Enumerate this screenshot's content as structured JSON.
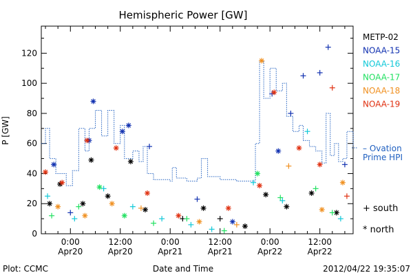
{
  "chart_data": {
    "type": "scatter",
    "title": "Hemispheric Power [GW]",
    "ylabel": "P [GW]",
    "xlabel": "Date and Time",
    "ylim": [
      0,
      138
    ],
    "yticks": [
      0,
      20,
      40,
      60,
      80,
      100,
      120
    ],
    "xlim": [
      "2012-04-19 17:00",
      "2012-04-22 20:00"
    ],
    "xticks": [
      {
        "t": "2012-04-20 00:00",
        "line1": "0:00",
        "line2": "Apr20"
      },
      {
        "t": "2012-04-20 12:00",
        "line1": "12:00",
        "line2": "Apr20"
      },
      {
        "t": "2012-04-21 00:00",
        "line1": "0:00",
        "line2": "Apr21"
      },
      {
        "t": "2012-04-21 12:00",
        "line1": "12:00",
        "line2": "Apr21"
      },
      {
        "t": "2012-04-22 00:00",
        "line1": "0:00",
        "line2": "Apr22"
      },
      {
        "t": "2012-04-22 12:00",
        "line1": "12:00",
        "line2": "Apr22"
      }
    ],
    "series": [
      {
        "name": "METP-02",
        "color": "#000000",
        "points": [
          {
            "t": "2012-04-19 19:00",
            "y": 20,
            "m": "north"
          },
          {
            "t": "2012-04-19 21:30",
            "y": 33,
            "m": "north"
          },
          {
            "t": "2012-04-20 03:00",
            "y": 20,
            "m": "north"
          },
          {
            "t": "2012-04-20 05:00",
            "y": 49,
            "m": "north"
          },
          {
            "t": "2012-04-20 09:00",
            "y": 25,
            "m": "north"
          },
          {
            "t": "2012-04-20 14:30",
            "y": 48,
            "m": "north"
          },
          {
            "t": "2012-04-20 18:00",
            "y": 16,
            "m": "north"
          },
          {
            "t": "2012-04-21 03:00",
            "y": 10,
            "m": "south"
          },
          {
            "t": "2012-04-21 08:00",
            "y": 17,
            "m": "north"
          },
          {
            "t": "2012-04-21 12:00",
            "y": 10,
            "m": "south"
          },
          {
            "t": "2012-04-21 18:00",
            "y": 5,
            "m": "north"
          },
          {
            "t": "2012-04-21 23:00",
            "y": 26,
            "m": "north"
          },
          {
            "t": "2012-04-22 04:00",
            "y": 18,
            "m": "north"
          },
          {
            "t": "2012-04-22 10:00",
            "y": 27,
            "m": "north"
          },
          {
            "t": "2012-04-22 16:00",
            "y": 14,
            "m": "north"
          }
        ]
      },
      {
        "name": "NOAA-15",
        "color": "#1030b0",
        "points": [
          {
            "t": "2012-04-19 20:00",
            "y": 46,
            "m": "north"
          },
          {
            "t": "2012-04-20 00:00",
            "y": 14,
            "m": "south"
          },
          {
            "t": "2012-04-20 04:30",
            "y": 62,
            "m": "north"
          },
          {
            "t": "2012-04-20 05:30",
            "y": 88,
            "m": "north"
          },
          {
            "t": "2012-04-20 12:30",
            "y": 68,
            "m": "north"
          },
          {
            "t": "2012-04-20 14:00",
            "y": 72,
            "m": "north"
          },
          {
            "t": "2012-04-20 19:00",
            "y": 58,
            "m": "south"
          },
          {
            "t": "2012-04-21 06:30",
            "y": 23,
            "m": "south"
          },
          {
            "t": "2012-04-21 15:00",
            "y": 8,
            "m": "north"
          },
          {
            "t": "2012-04-22 00:30",
            "y": 93,
            "m": "south"
          },
          {
            "t": "2012-04-22 02:00",
            "y": 55,
            "m": "north"
          },
          {
            "t": "2012-04-22 05:00",
            "y": 80,
            "m": "south"
          },
          {
            "t": "2012-04-22 08:00",
            "y": 105,
            "m": "south"
          },
          {
            "t": "2012-04-22 12:00",
            "y": 107,
            "m": "south"
          },
          {
            "t": "2012-04-22 14:00",
            "y": 124,
            "m": "south"
          },
          {
            "t": "2012-04-22 18:00",
            "y": 46,
            "m": "south"
          }
        ]
      },
      {
        "name": "NOAA-16",
        "color": "#10c8d8",
        "points": [
          {
            "t": "2012-04-19 18:30",
            "y": 25,
            "m": "south"
          },
          {
            "t": "2012-04-20 01:00",
            "y": 10,
            "m": "south"
          },
          {
            "t": "2012-04-20 08:00",
            "y": 30,
            "m": "south"
          },
          {
            "t": "2012-04-20 15:00",
            "y": 18,
            "m": "south"
          },
          {
            "t": "2012-04-20 22:00",
            "y": 10,
            "m": "south"
          },
          {
            "t": "2012-04-21 05:00",
            "y": 6,
            "m": "south"
          },
          {
            "t": "2012-04-21 10:00",
            "y": 3,
            "m": "south"
          },
          {
            "t": "2012-04-21 20:00",
            "y": 34,
            "m": "south"
          },
          {
            "t": "2012-04-22 03:00",
            "y": 22,
            "m": "south"
          },
          {
            "t": "2012-04-22 09:00",
            "y": 68,
            "m": "south"
          },
          {
            "t": "2012-04-22 17:00",
            "y": 10,
            "m": "south"
          }
        ]
      },
      {
        "name": "NOAA-17",
        "color": "#20e060",
        "points": [
          {
            "t": "2012-04-19 19:30",
            "y": 12,
            "m": "south"
          },
          {
            "t": "2012-04-20 02:00",
            "y": 18,
            "m": "south"
          },
          {
            "t": "2012-04-20 07:00",
            "y": 31,
            "m": "north"
          },
          {
            "t": "2012-04-20 13:00",
            "y": 12,
            "m": "north"
          },
          {
            "t": "2012-04-20 20:00",
            "y": 7,
            "m": "south"
          },
          {
            "t": "2012-04-21 04:00",
            "y": 10,
            "m": "south"
          },
          {
            "t": "2012-04-21 13:00",
            "y": 2,
            "m": "south"
          },
          {
            "t": "2012-04-21 21:00",
            "y": 40,
            "m": "north"
          },
          {
            "t": "2012-04-22 02:30",
            "y": 24,
            "m": "south"
          },
          {
            "t": "2012-04-22 11:00",
            "y": 30,
            "m": "south"
          },
          {
            "t": "2012-04-22 15:00",
            "y": 14,
            "m": "south"
          }
        ]
      },
      {
        "name": "NOAA-18",
        "color": "#f09020",
        "points": [
          {
            "t": "2012-04-19 21:00",
            "y": 18,
            "m": "north"
          },
          {
            "t": "2012-04-20 03:30",
            "y": 12,
            "m": "north"
          },
          {
            "t": "2012-04-20 10:00",
            "y": 20,
            "m": "north"
          },
          {
            "t": "2012-04-20 17:00",
            "y": 17,
            "m": "south"
          },
          {
            "t": "2012-04-21 07:00",
            "y": 8,
            "m": "north"
          },
          {
            "t": "2012-04-21 16:00",
            "y": 6,
            "m": "south"
          },
          {
            "t": "2012-04-21 22:00",
            "y": 115,
            "m": "north"
          },
          {
            "t": "2012-04-22 04:30",
            "y": 45,
            "m": "south"
          },
          {
            "t": "2012-04-22 12:30",
            "y": 16,
            "m": "north"
          },
          {
            "t": "2012-04-22 17:30",
            "y": 34,
            "m": "north"
          }
        ]
      },
      {
        "name": "NOAA-19",
        "color": "#e03010",
        "points": [
          {
            "t": "2012-04-19 18:00",
            "y": 41,
            "m": "north"
          },
          {
            "t": "2012-04-19 22:00",
            "y": 34,
            "m": "north"
          },
          {
            "t": "2012-04-20 04:00",
            "y": 62,
            "m": "north"
          },
          {
            "t": "2012-04-20 11:00",
            "y": 57,
            "m": "north"
          },
          {
            "t": "2012-04-20 18:30",
            "y": 27,
            "m": "north"
          },
          {
            "t": "2012-04-21 02:00",
            "y": 12,
            "m": "north"
          },
          {
            "t": "2012-04-21 14:00",
            "y": 17,
            "m": "north"
          },
          {
            "t": "2012-04-21 21:30",
            "y": 32,
            "m": "north"
          },
          {
            "t": "2012-04-22 01:00",
            "y": 94,
            "m": "north"
          },
          {
            "t": "2012-04-22 07:00",
            "y": 57,
            "m": "north"
          },
          {
            "t": "2012-04-22 12:00",
            "y": 46,
            "m": "north"
          },
          {
            "t": "2012-04-22 15:00",
            "y": 97,
            "m": "south"
          },
          {
            "t": "2012-04-22 18:30",
            "y": 25,
            "m": "south"
          }
        ]
      }
    ],
    "ovation": {
      "name_line1": "Ovation",
      "name_line2": "Prime HPI",
      "color": "#2060c0",
      "style": "dotted",
      "points": [
        {
          "t": "2012-04-19 17:00",
          "y": 60
        },
        {
          "t": "2012-04-19 18:00",
          "y": 70
        },
        {
          "t": "2012-04-19 19:00",
          "y": 50
        },
        {
          "t": "2012-04-19 20:30",
          "y": 40
        },
        {
          "t": "2012-04-19 23:00",
          "y": 32
        },
        {
          "t": "2012-04-20 00:30",
          "y": 42
        },
        {
          "t": "2012-04-20 02:00",
          "y": 70
        },
        {
          "t": "2012-04-20 03:30",
          "y": 55
        },
        {
          "t": "2012-04-20 04:30",
          "y": 70
        },
        {
          "t": "2012-04-20 06:00",
          "y": 82
        },
        {
          "t": "2012-04-20 07:30",
          "y": 65
        },
        {
          "t": "2012-04-20 09:00",
          "y": 82
        },
        {
          "t": "2012-04-20 10:30",
          "y": 60
        },
        {
          "t": "2012-04-20 12:00",
          "y": 72
        },
        {
          "t": "2012-04-20 13:00",
          "y": 50
        },
        {
          "t": "2012-04-20 15:00",
          "y": 55
        },
        {
          "t": "2012-04-20 16:30",
          "y": 48
        },
        {
          "t": "2012-04-20 17:30",
          "y": 58
        },
        {
          "t": "2012-04-20 18:30",
          "y": 40
        },
        {
          "t": "2012-04-20 20:00",
          "y": 36
        },
        {
          "t": "2012-04-21 00:00",
          "y": 35
        },
        {
          "t": "2012-04-21 00:30",
          "y": 44
        },
        {
          "t": "2012-04-21 01:30",
          "y": 37
        },
        {
          "t": "2012-04-21 04:00",
          "y": 35
        },
        {
          "t": "2012-04-21 06:30",
          "y": 37
        },
        {
          "t": "2012-04-21 07:30",
          "y": 50
        },
        {
          "t": "2012-04-21 09:00",
          "y": 38
        },
        {
          "t": "2012-04-21 12:00",
          "y": 36
        },
        {
          "t": "2012-04-21 16:00",
          "y": 35
        },
        {
          "t": "2012-04-21 19:00",
          "y": 35
        },
        {
          "t": "2012-04-21 20:30",
          "y": 60
        },
        {
          "t": "2012-04-21 21:30",
          "y": 115
        },
        {
          "t": "2012-04-21 22:30",
          "y": 90
        },
        {
          "t": "2012-04-22 00:00",
          "y": 110
        },
        {
          "t": "2012-04-22 01:30",
          "y": 95
        },
        {
          "t": "2012-04-22 03:00",
          "y": 100
        },
        {
          "t": "2012-04-22 04:00",
          "y": 78
        },
        {
          "t": "2012-04-22 05:30",
          "y": 68
        },
        {
          "t": "2012-04-22 07:00",
          "y": 72
        },
        {
          "t": "2012-04-22 08:00",
          "y": 62
        },
        {
          "t": "2012-04-22 09:30",
          "y": 58
        },
        {
          "t": "2012-04-22 11:00",
          "y": 55
        },
        {
          "t": "2012-04-22 12:30",
          "y": 47
        },
        {
          "t": "2012-04-22 13:30",
          "y": 80
        },
        {
          "t": "2012-04-22 14:30",
          "y": 52
        },
        {
          "t": "2012-04-22 15:30",
          "y": 60
        },
        {
          "t": "2012-04-22 16:30",
          "y": 48
        },
        {
          "t": "2012-04-22 17:30",
          "y": 50
        },
        {
          "t": "2012-04-22 18:30",
          "y": 68
        },
        {
          "t": "2012-04-22 20:00",
          "y": 58
        }
      ]
    },
    "marker_legend": [
      {
        "symbol": "+",
        "label": "south"
      },
      {
        "symbol": "*",
        "label": "north"
      }
    ],
    "footer_left": "Plot: CCMC",
    "footer_right": "2012/04/22 19:35:07",
    "grid": false,
    "legend_position": "right"
  }
}
